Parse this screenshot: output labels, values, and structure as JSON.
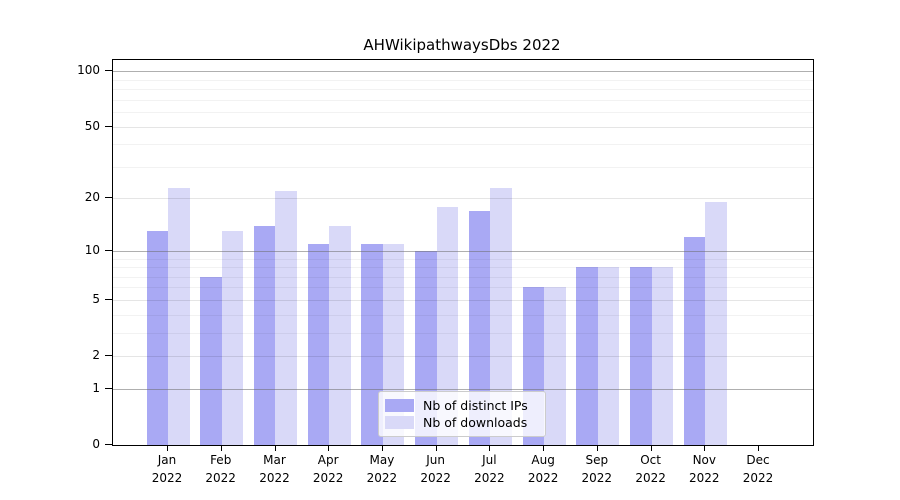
{
  "title": "AHWikipathwaysDbs 2022",
  "legend": {
    "items": [
      {
        "label": "Nb of distinct IPs",
        "color": "#a9a9f4"
      },
      {
        "label": "Nb of downloads",
        "color": "#d9d9f8"
      }
    ]
  },
  "chart_data": {
    "type": "bar",
    "title": "AHWikipathwaysDbs 2022",
    "xlabel": "",
    "ylabel": "",
    "scale": "log1p",
    "categories": [
      "Jan",
      "Feb",
      "Mar",
      "Apr",
      "May",
      "Jun",
      "Jul",
      "Aug",
      "Sep",
      "Oct",
      "Nov",
      "Dec"
    ],
    "year": "2022",
    "series": [
      {
        "name": "Nb of distinct IPs",
        "color": "#a9a9f4",
        "values": [
          13,
          7,
          14,
          11,
          11,
          10,
          17,
          6,
          8,
          8,
          12,
          0
        ]
      },
      {
        "name": "Nb of downloads",
        "color": "#d9d9f8",
        "values": [
          23,
          13,
          22,
          14,
          11,
          18,
          23,
          6,
          8,
          8,
          19,
          0
        ]
      }
    ],
    "yticks": [
      0,
      1,
      2,
      5,
      10,
      20,
      50,
      100
    ],
    "ytick_labels": [
      "0",
      "1",
      "2",
      "5",
      "10",
      "20",
      "50",
      "100"
    ],
    "decade_gridlines": [
      1,
      10,
      100
    ],
    "minor_gridlines": [
      3,
      4,
      6,
      7,
      8,
      9,
      30,
      40,
      60,
      70,
      80,
      90
    ],
    "ylim": [
      0,
      115
    ],
    "grid": "on",
    "legend_position": "lower-center-inside"
  }
}
